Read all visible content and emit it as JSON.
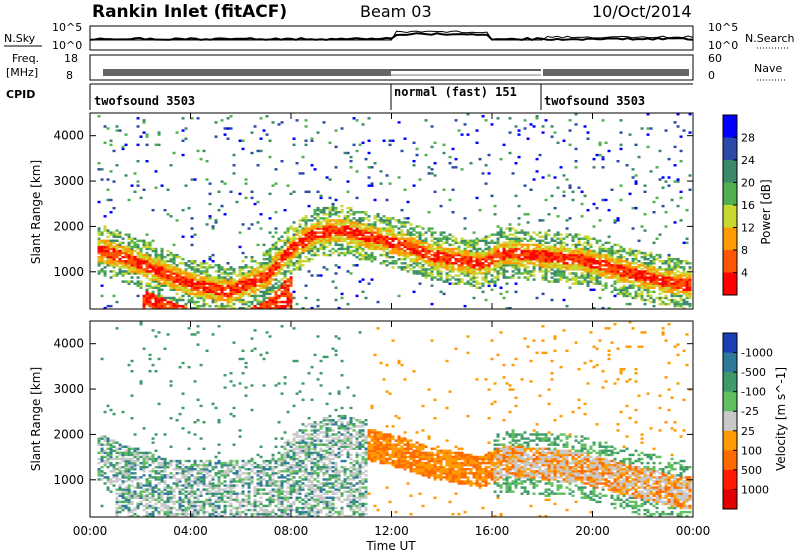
{
  "header": {
    "station": "Rankin Inlet (fitACF)",
    "beam": "Beam 03",
    "date": "10/Oct/2014"
  },
  "nsky_panel": {
    "left_label": "N.Sky",
    "left_ticks": [
      "10^5",
      "10^0"
    ],
    "right_label": "N.Search",
    "right_ticks": [
      "10^5",
      "10^0"
    ]
  },
  "freq_panel": {
    "left_label_1": "Freq.",
    "left_label_2": "[MHz]",
    "left_ticks": [
      "18",
      "8"
    ],
    "right_label": "Nave",
    "right_ticks": [
      "60",
      "0"
    ]
  },
  "cpid_panel": {
    "label": "CPID",
    "modes": [
      "twofsound 3503",
      "normal (fast) 151",
      "twofsound 3503"
    ]
  },
  "x_axis": {
    "ticks": [
      "00:00",
      "04:00",
      "08:00",
      "12:00",
      "16:00",
      "20:00",
      "00:00"
    ],
    "title": "Time UT"
  },
  "chart_data": [
    {
      "type": "heatmap",
      "title": "Power",
      "ylabel": "Slant Range [km]",
      "xlabel": "Time UT",
      "xlim": [
        0,
        24
      ],
      "ylim": [
        180,
        4500
      ],
      "y_ticks": [
        1000,
        2000,
        3000,
        4000
      ],
      "colorbar": {
        "label": "Power [dB]",
        "ticks": [
          "4",
          "8",
          "12",
          "16",
          "20",
          "24",
          "28"
        ],
        "colors": [
          "#0000ff",
          "#2a4ba8",
          "#3a8a6a",
          "#50b050",
          "#c8d830",
          "#ff9a00",
          "#ff5500",
          "#ff0000"
        ]
      },
      "bands": [
        {
          "name": "main echo",
          "points": [
            [
              0.5,
              1450
            ],
            [
              2,
              1150
            ],
            [
              4,
              700
            ],
            [
              5.5,
              550
            ],
            [
              7,
              900
            ],
            [
              8,
              1500
            ],
            [
              9,
              1850
            ],
            [
              10,
              1900
            ],
            [
              11.5,
              1700
            ],
            [
              12.5,
              1550
            ],
            [
              13.5,
              1350
            ],
            [
              14.5,
              1250
            ],
            [
              15.5,
              1150
            ],
            [
              16.5,
              1400
            ],
            [
              17.5,
              1350
            ],
            [
              18.5,
              1300
            ],
            [
              19.5,
              1250
            ],
            [
              20.5,
              1100
            ],
            [
              21.5,
              950
            ],
            [
              23.5,
              700
            ]
          ]
        }
      ]
    },
    {
      "type": "heatmap",
      "title": "Velocity",
      "ylabel": "Slant Range [km]",
      "xlabel": "Time UT",
      "xlim": [
        0,
        24
      ],
      "ylim": [
        180,
        4500
      ],
      "y_ticks": [
        1000,
        2000,
        3000,
        4000
      ],
      "colorbar": {
        "label": "Velocity [m s^-1]",
        "ticks": [
          "1000",
          "500",
          "100",
          "25",
          "-25",
          "-100",
          "-500",
          "-1000"
        ],
        "colors": [
          "#1a40b8",
          "#2f7a9a",
          "#3f9a6a",
          "#60c060",
          "#c8c8c8",
          "#ff9a00",
          "#ff6a00",
          "#ff1a00",
          "#e00000"
        ]
      }
    }
  ]
}
